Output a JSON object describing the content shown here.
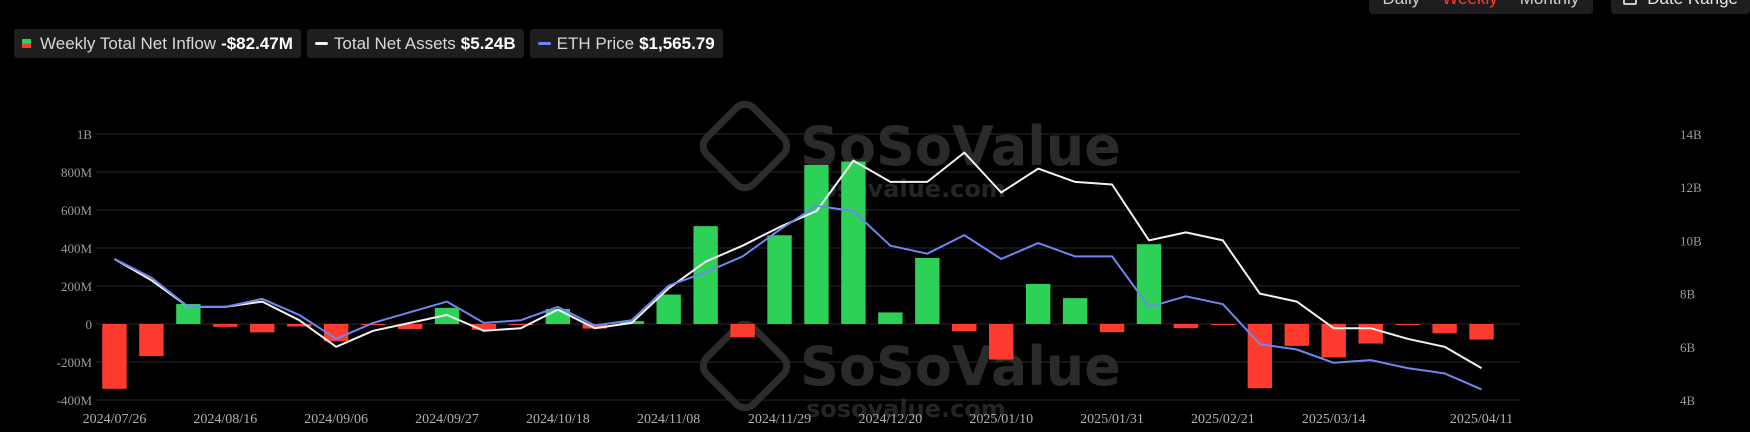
{
  "legend": {
    "inflow_label": "Weekly Total Net Inflow",
    "inflow_value": "-$82.47M",
    "assets_label": "Total Net Assets",
    "assets_value": "$5.24B",
    "eth_label": "ETH Price",
    "eth_value": "$1,565.79"
  },
  "controls": {
    "daily": "Daily",
    "weekly": "Weekly",
    "monthly": "Monthly",
    "date_range": "Date Range"
  },
  "watermark": {
    "brand": "SoSoValue",
    "url": "sosovalue.com"
  },
  "colors": {
    "positive": "#2dd158",
    "negative": "#ff3b30",
    "assets_line": "#f2f2f2",
    "eth_line": "#6f86f0",
    "grid": "#2a2a2a"
  },
  "chart_data": {
    "type": "bar",
    "x_tick_labels": [
      "2024/07/26",
      "2024/08/16",
      "2024/09/06",
      "2024/09/27",
      "2024/10/18",
      "2024/11/08",
      "2024/11/29",
      "2024/12/20",
      "2025/01/10",
      "2025/01/31",
      "2025/02/21",
      "2025/03/14",
      "2025/04/11"
    ],
    "left_axis": {
      "ticks": [
        "-400M",
        "-200M",
        "0",
        "200M",
        "400M",
        "600M",
        "800M",
        "1B"
      ],
      "ylim": [
        -400,
        1000
      ],
      "unit": "M"
    },
    "right_axis": {
      "ticks": [
        "4B",
        "6B",
        "8B",
        "10B",
        "12B",
        "14B"
      ],
      "ylim": [
        4,
        14
      ],
      "unit": "B"
    },
    "grid": true,
    "legend_position": "top-left",
    "x": [
      "2024/07/26",
      "2024/08/02",
      "2024/08/09",
      "2024/08/16",
      "2024/08/23",
      "2024/08/30",
      "2024/09/06",
      "2024/09/13",
      "2024/09/20",
      "2024/09/27",
      "2024/10/04",
      "2024/10/11",
      "2024/10/18",
      "2024/10/25",
      "2024/11/01",
      "2024/11/08",
      "2024/11/15",
      "2024/11/22",
      "2024/11/29",
      "2024/12/06",
      "2024/12/13",
      "2024/12/20",
      "2024/12/27",
      "2025/01/03",
      "2025/01/10",
      "2025/01/17",
      "2025/01/24",
      "2025/01/31",
      "2025/02/07",
      "2025/02/14",
      "2025/02/21",
      "2025/02/28",
      "2025/03/07",
      "2025/03/14",
      "2025/03/21",
      "2025/03/28",
      "2025/04/04",
      "2025/04/11"
    ],
    "series": [
      {
        "name": "Weekly Total Net Inflow",
        "type": "bar",
        "axis": "left",
        "values": [
          -341,
          -169,
          105,
          -15,
          -44,
          -13,
          -91,
          -5,
          -26,
          85,
          -30,
          -5,
          79,
          -24,
          15,
          155,
          515,
          -70,
          467,
          837,
          855,
          61,
          348,
          -38,
          -187,
          211,
          136,
          -43,
          420,
          -22,
          -2,
          -338,
          -115,
          -176,
          -103,
          -3,
          -49,
          -82
        ]
      },
      {
        "name": "Total Net Assets",
        "type": "line",
        "axis": "right",
        "values": [
          9.3,
          8.5,
          7.5,
          7.5,
          7.7,
          7.0,
          6.0,
          6.6,
          6.9,
          7.2,
          6.6,
          6.7,
          7.4,
          6.7,
          6.9,
          8.2,
          9.2,
          9.8,
          10.5,
          11.1,
          13.0,
          12.2,
          12.2,
          13.3,
          11.8,
          12.7,
          12.2,
          12.1,
          10.0,
          10.3,
          10.0,
          8.0,
          7.7,
          6.7,
          6.7,
          6.3,
          6.0,
          5.2
        ]
      },
      {
        "name": "ETH Price",
        "type": "line",
        "axis": "right",
        "values": [
          9.3,
          8.6,
          7.5,
          7.5,
          7.8,
          7.2,
          6.3,
          6.9,
          7.3,
          7.7,
          6.9,
          7.0,
          7.5,
          6.8,
          7.0,
          8.3,
          8.8,
          9.4,
          10.4,
          11.3,
          11.1,
          9.8,
          9.5,
          10.2,
          9.3,
          9.9,
          9.4,
          9.4,
          7.5,
          7.9,
          7.6,
          6.1,
          5.9,
          5.4,
          5.5,
          5.2,
          5.0,
          4.4
        ]
      }
    ]
  }
}
